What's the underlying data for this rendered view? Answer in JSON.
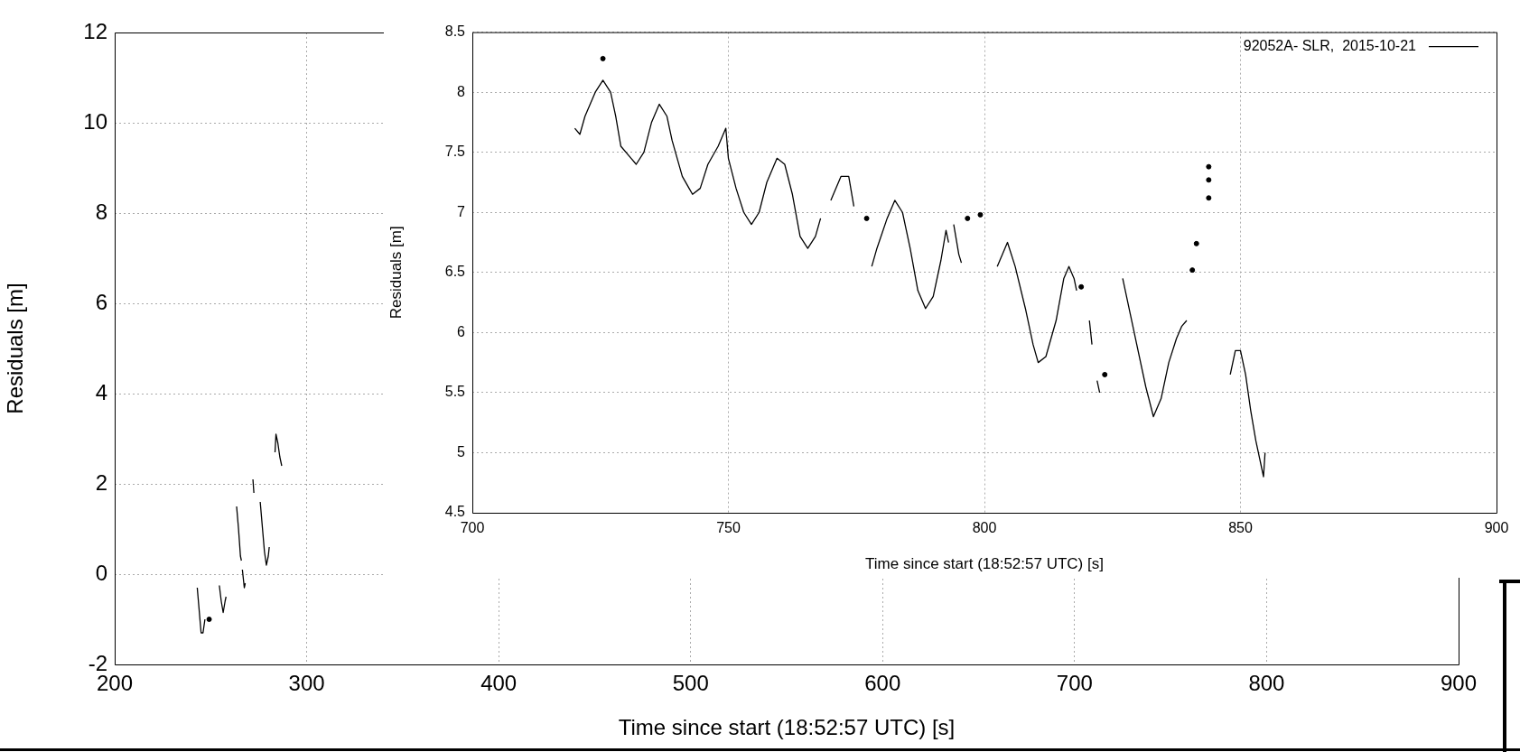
{
  "chart_data": [
    {
      "type": "line",
      "xlabel": "Time since start (18:52:57 UTC) [s]",
      "ylabel": "Residuals [m]",
      "xlim": [
        200,
        900
      ],
      "ylim": [
        -2,
        12
      ],
      "xticks": [
        200,
        300,
        400,
        500,
        600,
        700,
        800,
        900
      ],
      "yticks": [
        -2,
        0,
        2,
        4,
        6,
        8,
        10,
        12
      ],
      "grid": true,
      "legend": false,
      "series": [
        {
          "color": "#000000",
          "x": [
            243,
            244,
            245,
            246,
            247,
            248,
            249,
            249.5,
            251,
            254.5,
            255.5,
            256.5,
            257.5,
            258,
            260,
            263.5,
            264.5,
            265.5,
            266,
            266.3,
            266.5,
            267.5,
            268,
            270,
            272,
            272.5,
            274,
            275.8,
            277,
            278,
            279,
            280,
            280.5,
            282,
            283.5,
            284,
            285,
            286,
            287
          ],
          "values": [
            -0.3,
            -0.8,
            -1.3,
            -1.3,
            -1.0,
            null,
            null,
            null,
            null,
            -0.25,
            -0.6,
            -0.85,
            -0.6,
            -0.5,
            null,
            1.5,
            1.0,
            0.4,
            0.3,
            null,
            0.1,
            -0.3,
            -0.2,
            null,
            2.1,
            1.8,
            null,
            1.6,
            1.0,
            0.5,
            0.2,
            0.4,
            0.6,
            null,
            2.7,
            3.1,
            2.9,
            2.6,
            2.4
          ]
        },
        {
          "color": "#000000",
          "type": "scatter",
          "marker": "circle",
          "x": [
            249.2
          ],
          "values": [
            -1.0
          ]
        }
      ]
    },
    {
      "type": "line",
      "xlabel": "Time since start (18:52:57 UTC) [s]",
      "ylabel": "Residuals [m]",
      "xlim": [
        700,
        900
      ],
      "ylim": [
        4.5,
        8.5
      ],
      "xticks": [
        700,
        750,
        800,
        850,
        900
      ],
      "yticks": [
        4.5,
        5,
        5.5,
        6,
        6.5,
        7,
        7.5,
        8,
        8.5
      ],
      "grid": true,
      "legend": "top right",
      "series": [
        {
          "name": "92052A- SLR,  2015-10-21",
          "color": "#000000",
          "x": [
            720,
            721,
            722,
            724,
            725.5,
            727,
            728,
            729,
            731,
            732,
            733.5,
            735,
            736.5,
            738,
            739,
            741,
            743,
            744.5,
            746,
            748,
            749.5,
            750,
            751.5,
            753,
            754.5,
            756,
            757.5,
            759.5,
            761,
            762.5,
            764,
            765.5,
            767,
            768,
            769,
            770,
            772,
            773.5,
            774.5,
            776,
            778,
            779,
            781,
            782.5,
            784,
            785.5,
            787,
            788.5,
            790,
            791.5,
            792.5,
            793,
            793.5,
            794,
            795,
            795.5,
            798,
            802.5,
            804.5,
            806,
            808,
            809.5,
            810.5,
            812,
            814,
            815.5,
            816.5,
            817.5,
            818,
            819.5,
            820.5,
            821,
            821.5,
            822,
            822.5,
            824,
            827,
            828.5,
            830,
            831.5,
            833,
            834.5,
            836,
            837.5,
            838.5,
            839.5,
            844,
            848,
            849,
            850,
            851,
            852,
            853,
            854,
            854.5,
            854.8
          ],
          "values": [
            7.7,
            7.65,
            7.8,
            8,
            8.1,
            8,
            7.8,
            7.55,
            7.45,
            7.4,
            7.5,
            7.75,
            7.9,
            7.8,
            7.6,
            7.3,
            7.15,
            7.2,
            7.4,
            7.55,
            7.7,
            7.45,
            7.2,
            7,
            6.9,
            7,
            7.25,
            7.45,
            7.4,
            7.15,
            6.8,
            6.7,
            6.8,
            6.95,
            null,
            7.1,
            7.3,
            7.3,
            7.05,
            null,
            6.55,
            6.7,
            6.95,
            7.1,
            7,
            6.7,
            6.35,
            6.2,
            6.3,
            6.6,
            6.85,
            6.75,
            null,
            6.9,
            6.65,
            6.58,
            null,
            6.55,
            6.75,
            6.55,
            6.2,
            5.9,
            5.75,
            5.8,
            6.1,
            6.45,
            6.55,
            6.45,
            6.35,
            null,
            6.1,
            5.9,
            null,
            5.6,
            5.5,
            null,
            6.45,
            6.15,
            5.85,
            5.55,
            5.3,
            5.45,
            5.75,
            5.95,
            6.05,
            6.1,
            null,
            5.65,
            5.85,
            5.85,
            5.65,
            5.35,
            5.1,
            4.9,
            4.8,
            5
          ]
        },
        {
          "color": "#000000",
          "type": "scatter",
          "marker": "circle",
          "x": [
            725.5,
            777,
            796.7,
            799.2,
            818.9,
            823.5,
            840.6,
            841.4,
            843.8,
            843.8,
            843.8
          ],
          "values": [
            8.28,
            6.95,
            6.95,
            6.98,
            6.38,
            5.65,
            6.52,
            6.74,
            7.12,
            7.27,
            7.38
          ]
        }
      ]
    }
  ]
}
